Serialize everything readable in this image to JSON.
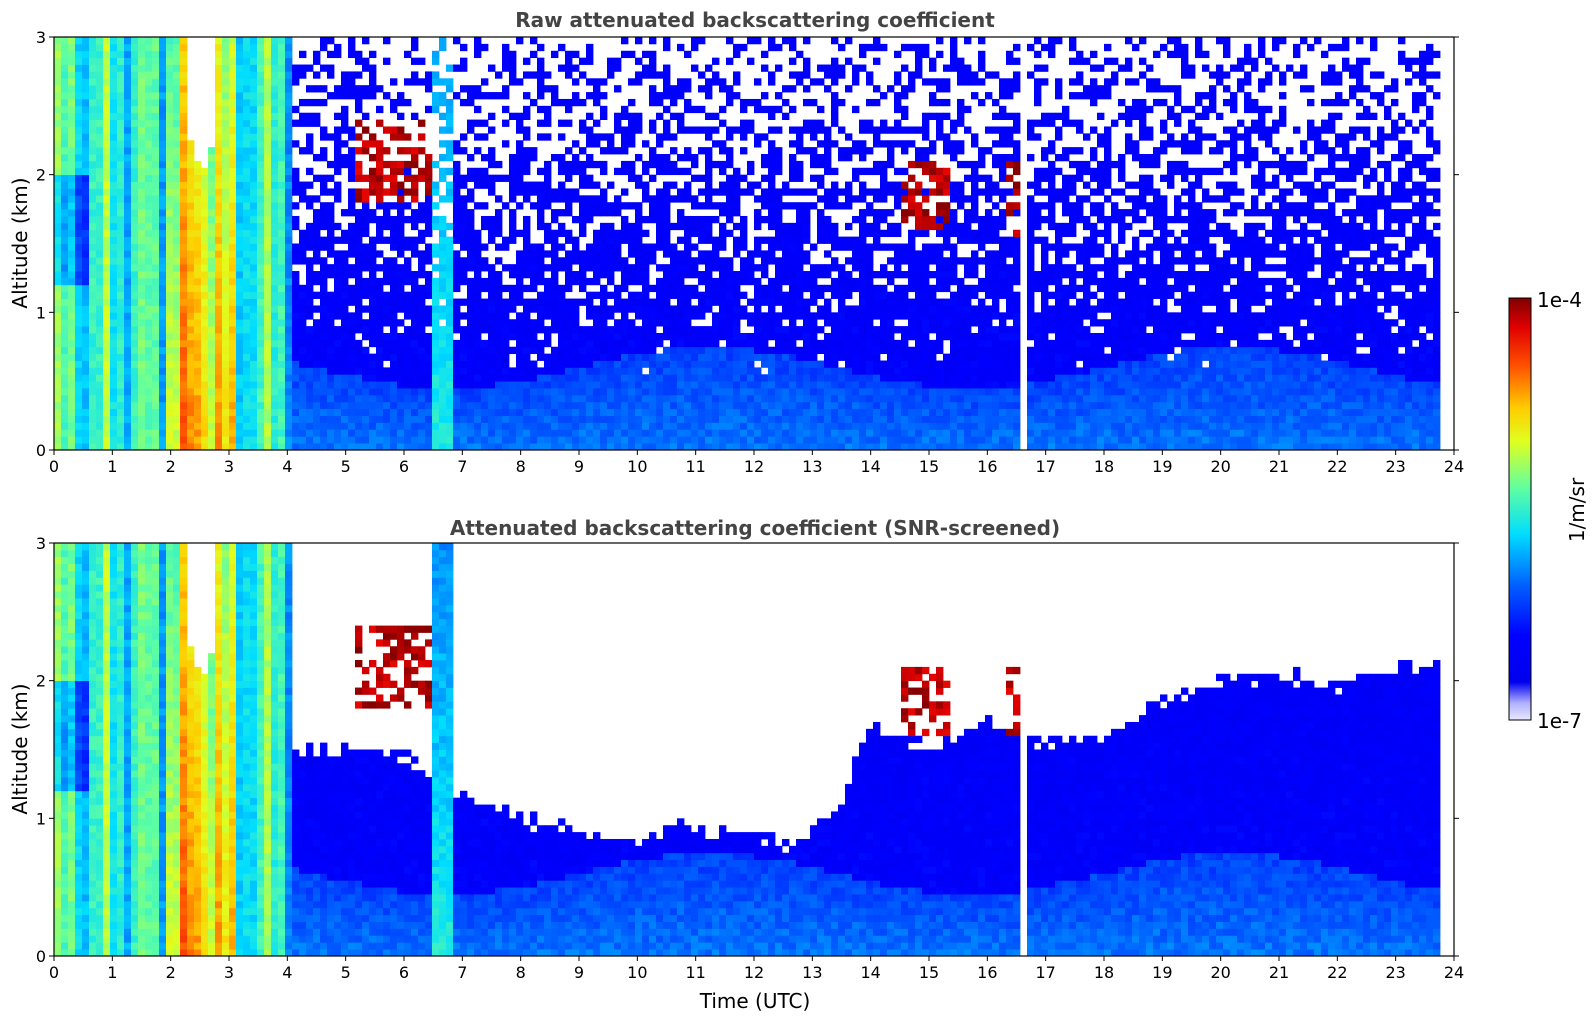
{
  "chart_data": [
    {
      "type": "heatmap",
      "title": "Raw attenuated backscattering coefficient",
      "xlabel": "",
      "ylabel": "Altitude (km)",
      "xlim": [
        0,
        24
      ],
      "ylim": [
        0,
        3
      ],
      "xticks": [
        "0",
        "1",
        "2",
        "3",
        "4",
        "5",
        "6",
        "7",
        "8",
        "9",
        "10",
        "11",
        "12",
        "13",
        "14",
        "15",
        "16",
        "17",
        "18",
        "19",
        "20",
        "21",
        "22",
        "23",
        "24"
      ],
      "yticks": [
        "0",
        "1",
        "2",
        "3"
      ],
      "grid": false,
      "screened": false,
      "features": {
        "dense_aerosol_hours": [
          0,
          4.05
        ],
        "dense_peak_hours": [
          1.9,
          3.1
        ],
        "boundary_layer_top_km": 0.6,
        "cloud_layers": [
          {
            "start": 5.2,
            "end": 6.5,
            "bottom_km": 1.8,
            "top_km": 2.4
          },
          {
            "start": 14.5,
            "end": 15.3,
            "bottom_km": 1.6,
            "top_km": 2.1
          },
          {
            "start": 16.3,
            "end": 16.6,
            "bottom_km": 1.55,
            "top_km": 2.1
          }
        ],
        "data_gaps_hours": [
          4.55,
          10.05,
          11.05,
          14.5,
          16.6
        ],
        "data_end_hour": 23.8
      }
    },
    {
      "type": "heatmap",
      "title": "Attenuated backscattering coefficient (SNR-screened)",
      "xlabel": "Time (UTC)",
      "ylabel": "Altitude (km)",
      "xlim": [
        0,
        24
      ],
      "ylim": [
        0,
        3
      ],
      "xticks": [
        "0",
        "1",
        "2",
        "3",
        "4",
        "5",
        "6",
        "7",
        "8",
        "9",
        "10",
        "11",
        "12",
        "13",
        "14",
        "15",
        "16",
        "17",
        "18",
        "19",
        "20",
        "21",
        "22",
        "23",
        "24"
      ],
      "yticks": [
        "0",
        "1",
        "2",
        "3"
      ],
      "grid": false,
      "screened": true,
      "features": {
        "screening_ceiling_km": [
          [
            4.1,
            1.5
          ],
          [
            5.0,
            1.5
          ],
          [
            6.0,
            1.45
          ],
          [
            7.0,
            1.15
          ],
          [
            8.0,
            1.0
          ],
          [
            9.0,
            0.9
          ],
          [
            10.0,
            0.85
          ],
          [
            11.0,
            0.95
          ],
          [
            12.0,
            0.85
          ],
          [
            12.7,
            0.8
          ],
          [
            13.5,
            1.1
          ],
          [
            14.0,
            1.7
          ],
          [
            15.0,
            1.5
          ],
          [
            16.0,
            1.7
          ],
          [
            17.0,
            1.55
          ],
          [
            18.0,
            1.6
          ],
          [
            19.0,
            1.85
          ],
          [
            20.0,
            2.0
          ],
          [
            21.0,
            2.05
          ],
          [
            22.0,
            1.95
          ],
          [
            23.0,
            2.1
          ],
          [
            23.8,
            2.15
          ]
        ]
      }
    }
  ],
  "colorbar": {
    "label": "1/m/sr",
    "max_label": "1e-4",
    "min_label": "1e-7",
    "scale": "log",
    "range": [
      1e-07,
      0.0001
    ],
    "colormap": "jet",
    "colors": [
      "#e8e8ff",
      "#0000e0",
      "#0000ff",
      "#0080ff",
      "#00ffff",
      "#80ff80",
      "#ffff00",
      "#ff8000",
      "#ff0000",
      "#800000"
    ]
  }
}
